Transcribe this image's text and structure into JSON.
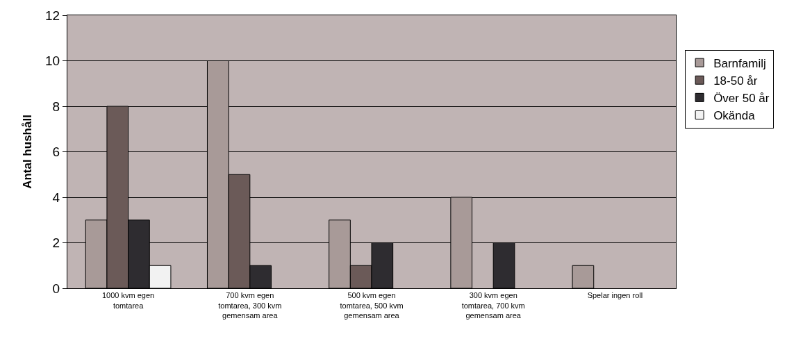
{
  "chart_data": {
    "type": "bar",
    "ylabel": "Antal hushåll",
    "categories": [
      "1000 kvm egen tomtarea",
      "700 kvm egen tomtarea, 300 kvm gemensam area",
      "500 kvm egen tomtarea, 500 kvm gemensam area",
      "300 kvm egen tomtarea, 700 kvm gemensam area",
      "Spelar ingen roll"
    ],
    "series": [
      {
        "name": "Barnfamilj",
        "color": "#a89a98",
        "values": [
          3,
          10,
          3,
          4,
          1
        ]
      },
      {
        "name": "18-50 år",
        "color": "#6b5a58",
        "values": [
          8,
          5,
          1,
          null,
          null
        ]
      },
      {
        "name": "Över 50 år",
        "color": "#2e2c30",
        "values": [
          3,
          1,
          2,
          2,
          null
        ]
      },
      {
        "name": "Okända",
        "color": "#f2f2f2",
        "values": [
          1,
          null,
          null,
          null,
          null
        ]
      }
    ],
    "ylim": [
      0,
      12
    ],
    "yticks": [
      0,
      2,
      4,
      6,
      8,
      10,
      12
    ],
    "grid": "y",
    "legend": "right"
  }
}
